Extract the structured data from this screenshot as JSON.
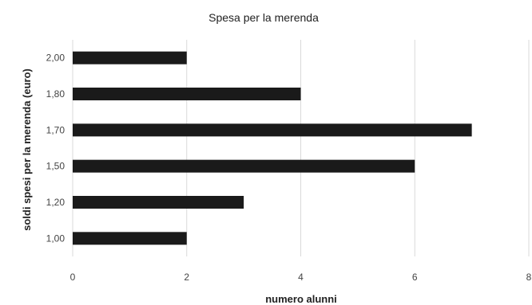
{
  "chart_data": {
    "type": "bar",
    "orientation": "horizontal",
    "title": "Spesa per la merenda",
    "xlabel": "numero alunni",
    "ylabel": "soldi spesi per la merenda (euro)",
    "categories": [
      "1,00",
      "1,20",
      "1,50",
      "1,70",
      "1,80",
      "2,00"
    ],
    "values": [
      2,
      3,
      6,
      7,
      4,
      2
    ],
    "xlim": [
      0,
      8
    ],
    "xticks": [
      "0",
      "2",
      "4",
      "6",
      "8"
    ],
    "grid": true,
    "bar_color": "#1a1a1a",
    "grid_color": "#d9d9d9"
  }
}
